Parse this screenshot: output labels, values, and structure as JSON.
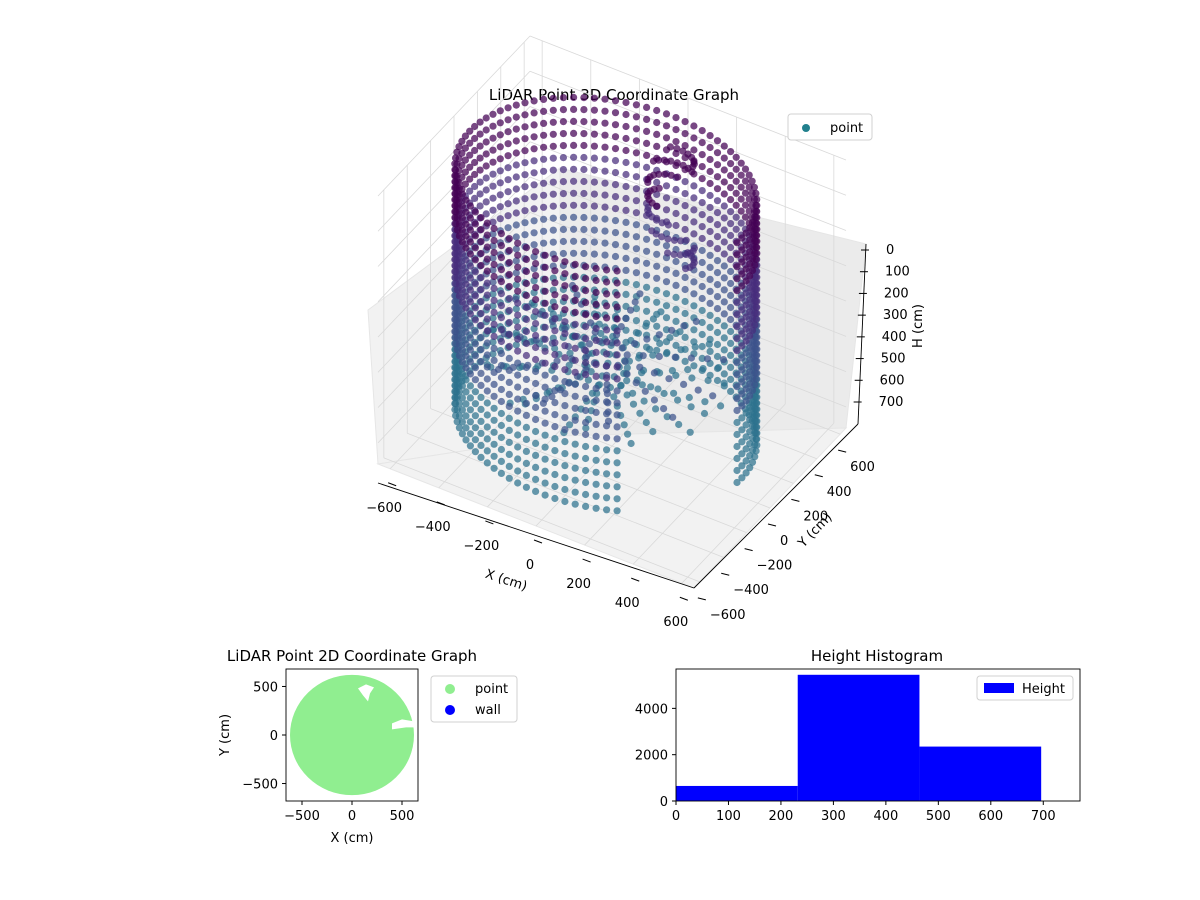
{
  "chart_data": [
    {
      "type": "scatter3d",
      "title": "LiDAR Point 3D Coordinate Graph",
      "xlabel": "X (cm)",
      "ylabel": "Y (cm)",
      "zlabel": "H (cm)",
      "xticks": [
        "−600",
        "−400",
        "−200",
        "0",
        "200",
        "400",
        "600"
      ],
      "yticks": [
        "−600",
        "−400",
        "−200",
        "0",
        "200",
        "400",
        "600"
      ],
      "zticks": [
        "0",
        "100",
        "200",
        "300",
        "400",
        "500",
        "600",
        "700"
      ],
      "xlim": [
        -650,
        650
      ],
      "ylim": [
        -650,
        650
      ],
      "zlim": [
        760,
        0
      ],
      "zinverted": true,
      "legend": {
        "placement": "upper-right",
        "entries": [
          {
            "name": "point",
            "color": "#21808d"
          }
        ]
      },
      "series": [
        {
          "name": "point",
          "colormap": "viridis",
          "color": "#21808d"
        }
      ],
      "grid": true
    },
    {
      "type": "scatter",
      "title": "LiDAR Point 2D Coordinate Graph",
      "xlabel": "X (cm)",
      "ylabel": "Y (cm)",
      "xticks": [
        "−500",
        "0",
        "500"
      ],
      "yticks": [
        "−500",
        "0",
        "500"
      ],
      "xlim": [
        -660,
        660
      ],
      "ylim": [
        -680,
        680
      ],
      "legend": {
        "placement": "outside-right",
        "entries": [
          {
            "name": "point",
            "color": "#90ee90"
          },
          {
            "name": "wall",
            "color": "#0000ff"
          }
        ]
      },
      "series": [
        {
          "name": "point",
          "color": "#90ee90",
          "shape": "disc",
          "center": [
            0,
            0
          ],
          "radius": 620
        },
        {
          "name": "wall",
          "color": "#0000ff",
          "points": []
        }
      ]
    },
    {
      "type": "bar",
      "title": "Height Histogram",
      "xlabel": "",
      "ylabel": "",
      "xticks": [
        "0",
        "100",
        "200",
        "300",
        "400",
        "500",
        "600",
        "700"
      ],
      "yticks": [
        "0",
        "2000",
        "4000"
      ],
      "xlim": [
        0,
        770
      ],
      "ylim": [
        0,
        5700
      ],
      "bins": [
        {
          "start": 0,
          "end": 232,
          "count": 650
        },
        {
          "start": 232,
          "end": 464,
          "count": 5450
        },
        {
          "start": 464,
          "end": 696,
          "count": 2350
        }
      ],
      "legend": {
        "placement": "upper-right",
        "entries": [
          {
            "name": "Height",
            "color": "#0000ff"
          }
        ]
      },
      "series": [
        {
          "name": "Height",
          "color": "#0000ff"
        }
      ]
    }
  ]
}
